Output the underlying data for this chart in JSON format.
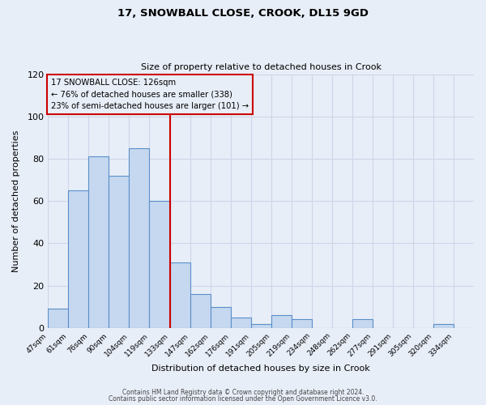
{
  "title": "17, SNOWBALL CLOSE, CROOK, DL15 9GD",
  "subtitle": "Size of property relative to detached houses in Crook",
  "xlabel": "Distribution of detached houses by size in Crook",
  "ylabel": "Number of detached properties",
  "bin_labels": [
    "47sqm",
    "61sqm",
    "76sqm",
    "90sqm",
    "104sqm",
    "119sqm",
    "133sqm",
    "147sqm",
    "162sqm",
    "176sqm",
    "191sqm",
    "205sqm",
    "219sqm",
    "234sqm",
    "248sqm",
    "262sqm",
    "277sqm",
    "291sqm",
    "305sqm",
    "320sqm",
    "334sqm"
  ],
  "bar_values": [
    9,
    65,
    81,
    72,
    85,
    60,
    31,
    16,
    10,
    5,
    2,
    6,
    4,
    0,
    0,
    4,
    0,
    0,
    0,
    2,
    0
  ],
  "bar_color": "#c5d8f0",
  "bar_edge_color": "#5b8fc9",
  "grid_color": "#cdd6e8",
  "background_color": "#e8eef8",
  "property_line_index": 6,
  "annotation_line1": "17 SNOWBALL CLOSE: 126sqm",
  "annotation_line2": "← 76% of detached houses are smaller (338)",
  "annotation_line3": "23% of semi-detached houses are larger (101) →",
  "annotation_box_color": "#cc0000",
  "ylim": [
    0,
    120
  ],
  "yticks": [
    0,
    20,
    40,
    60,
    80,
    100,
    120
  ],
  "footer_line1": "Contains HM Land Registry data © Crown copyright and database right 2024.",
  "footer_line2": "Contains public sector information licensed under the Open Government Licence v3.0."
}
